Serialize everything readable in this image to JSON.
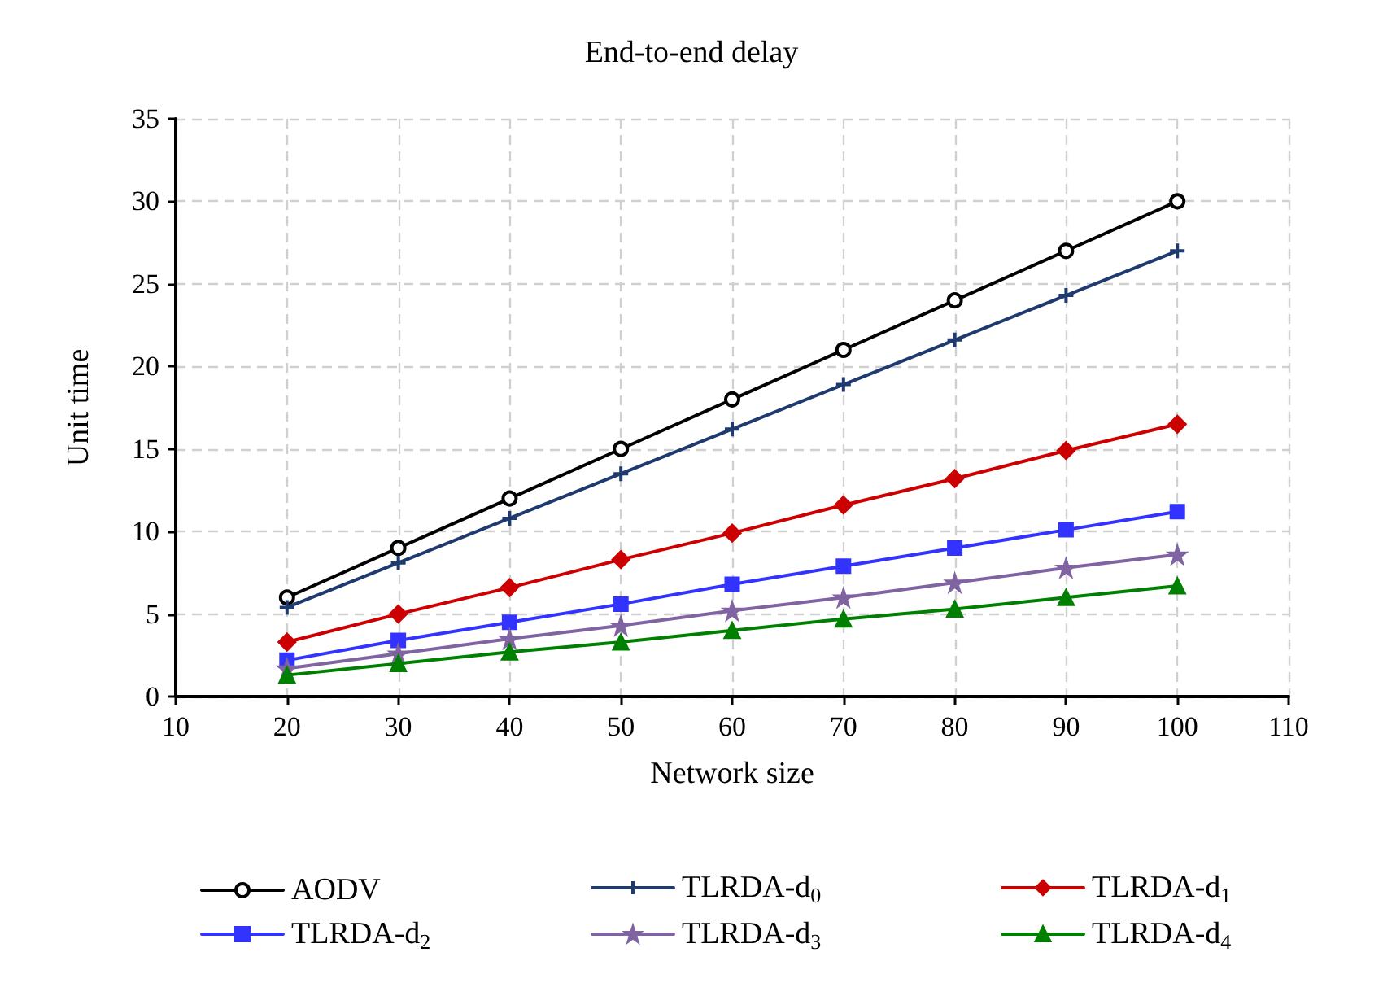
{
  "chart_data": {
    "type": "line",
    "title": "End-to-end delay",
    "xlabel": "Network size",
    "ylabel": "Unit time",
    "x": [
      20,
      30,
      40,
      50,
      60,
      70,
      80,
      90,
      100
    ],
    "xlim": [
      10,
      110
    ],
    "xticks": [
      10,
      20,
      30,
      40,
      50,
      60,
      70,
      80,
      90,
      100,
      110
    ],
    "ylim": [
      0,
      35
    ],
    "yticks": [
      0,
      5,
      10,
      15,
      20,
      25,
      30,
      35
    ],
    "grid": true,
    "legend": "bottom",
    "line_style": "solid",
    "series": [
      {
        "name": "AODV",
        "color": "#000000",
        "marker": "circle",
        "values": [
          6,
          9,
          12,
          15,
          18,
          21,
          24,
          27,
          30
        ]
      },
      {
        "name": "TLRDA-d$_{0}$",
        "color": "#1f3a6e",
        "marker": "cross",
        "values": [
          5.4,
          8.1,
          10.8,
          13.5,
          16.2,
          18.9,
          21.6,
          24.3,
          27
        ]
      },
      {
        "name": "TLRDA-d$_{1}$",
        "color": "#cc0000",
        "marker": "diamond",
        "values": [
          3.3,
          5.0,
          6.6,
          8.3,
          9.9,
          11.6,
          13.2,
          14.9,
          16.5
        ]
      },
      {
        "name": "TLRDA-d$_{2}$",
        "color": "#3333ff",
        "marker": "square",
        "values": [
          2.2,
          3.4,
          4.5,
          5.6,
          6.8,
          7.9,
          9.0,
          10.1,
          11.2
        ]
      },
      {
        "name": "TLRDA-d$_{3}$",
        "color": "#8064a2",
        "marker": "star",
        "values": [
          1.7,
          2.6,
          3.5,
          4.3,
          5.2,
          6.0,
          6.9,
          7.8,
          8.6
        ]
      },
      {
        "name": "TLRDA-d$_{4}$",
        "color": "#008000",
        "marker": "triangle",
        "values": [
          1.3,
          2.0,
          2.7,
          3.3,
          4.0,
          4.7,
          5.3,
          6.0,
          6.7
        ]
      }
    ]
  }
}
